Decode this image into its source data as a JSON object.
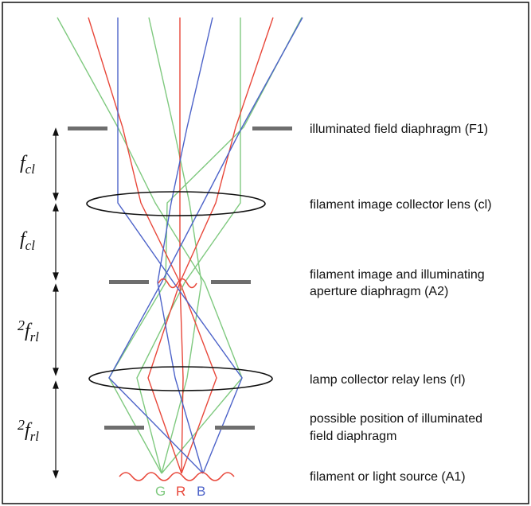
{
  "labels": {
    "f1": "illuminated field diaphragm (F1)",
    "cl": "filament image collector lens (cl)",
    "a2_line1": "filament image and illuminating",
    "a2_line2": "aperture diaphragm (A2)",
    "rl": "lamp collector relay lens (rl)",
    "possible_line1": "possible position of illuminated",
    "possible_line2": "field diaphragm",
    "a1": "filament or light source (A1)"
  },
  "dimensions": {
    "fcl_1": {
      "main": "f",
      "sub": "cl"
    },
    "fcl_2": {
      "main": "f",
      "sub": "cl"
    },
    "frl_1": {
      "pre": "2",
      "main": "f",
      "sub": "rl"
    },
    "frl_2": {
      "pre": "2",
      "main": "f",
      "sub": "rl"
    }
  },
  "source_letters": {
    "g": "G",
    "r": "R",
    "b": "B"
  },
  "colors": {
    "green": "#7fc97f",
    "red": "#e8473a",
    "blue": "#4d63c9",
    "diaphragm": "#6e6e6e",
    "border": "#111111"
  }
}
